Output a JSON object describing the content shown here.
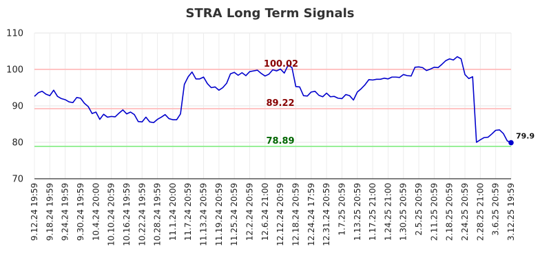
{
  "chart_data": {
    "type": "line",
    "title": "STRA Long Term Signals",
    "ylim": [
      70,
      110
    ],
    "yticks": [
      70,
      80,
      90,
      100,
      110
    ],
    "grid": true,
    "x_tick_labels": [
      "9.12.24 19:59",
      "9.18.24 19:59",
      "9.24.24 19:59",
      "9.30.24 19:59",
      "10.4.24 20:00",
      "10.10.24 20:59",
      "10.16.24 19:59",
      "10.22.24 19:59",
      "10.28.24 19:59",
      "11.1.24 20:00",
      "11.7.24 20:59",
      "11.13.24 20:59",
      "11.19.24 20:59",
      "11.25.24 20:59",
      "12.2.24 20:59",
      "12.6.24 21:00",
      "12.12.24 20:59",
      "12.18.24 20:59",
      "12.24.24 17:59",
      "12.31.24 20:59",
      "1.7.25 20:59",
      "1.13.25 20:59",
      "1.17.25 21:00",
      "1.24.25 21:00",
      "1.30.25 20:59",
      "2.5.25 20:59",
      "2.11.25 20:59",
      "2.18.25 20:59",
      "2.24.25 20:59",
      "2.28.25 21:00",
      "3.6.25 20:59",
      "3.12.25 19:59"
    ],
    "series": [
      {
        "color": "#0000cc",
        "values": [
          92.6,
          93.6,
          94.0,
          93.2,
          92.8,
          94.3,
          92.6,
          92.0,
          91.7,
          91.1,
          90.9,
          92.3,
          92.1,
          90.7,
          89.8,
          87.9,
          88.3,
          86.3,
          87.7,
          86.9,
          87.1,
          87.0,
          88.0,
          88.9,
          87.8,
          88.3,
          87.6,
          85.7,
          85.6,
          86.9,
          85.6,
          85.4,
          86.3,
          86.9,
          87.6,
          86.5,
          86.2,
          86.2,
          87.8,
          95.9,
          98.0,
          99.3,
          97.4,
          97.4,
          97.9,
          96.1,
          95.0,
          95.2,
          94.3,
          95.0,
          96.2,
          98.8,
          99.2,
          98.4,
          99.1,
          98.3,
          99.4,
          99.6,
          99.8,
          98.9,
          98.2,
          98.7,
          99.9,
          99.6,
          100.1,
          99.0,
          101.2,
          100.5,
          95.3,
          95.2,
          92.8,
          92.7,
          93.8,
          94.0,
          92.9,
          92.5,
          93.5,
          92.5,
          92.6,
          92.1,
          92.0,
          93.1,
          92.8,
          91.6,
          93.8,
          94.7,
          95.8,
          97.2,
          97.1,
          97.3,
          97.3,
          97.6,
          97.4,
          97.9,
          97.9,
          97.8,
          98.6,
          98.3,
          98.2,
          100.6,
          100.7,
          100.5,
          99.7,
          100.1,
          100.6,
          100.5,
          101.4,
          102.4,
          102.9,
          102.6,
          103.5,
          102.9,
          98.6,
          97.5,
          98.0,
          80.0,
          80.7,
          81.3,
          81.4,
          82.3,
          83.3,
          83.4,
          82.4,
          80.4,
          79.9
        ]
      }
    ],
    "levels": [
      {
        "value": 100.02,
        "label": "100.02",
        "line_color": "#ffbbbb",
        "text_color": "#880000"
      },
      {
        "value": 89.22,
        "label": "89.22",
        "line_color": "#ffbbbb",
        "text_color": "#880000"
      },
      {
        "value": 78.89,
        "label": "78.89",
        "line_color": "#88ee88",
        "text_color": "#006600"
      }
    ],
    "last_point": {
      "value": 79.9,
      "label": "79.9"
    }
  }
}
